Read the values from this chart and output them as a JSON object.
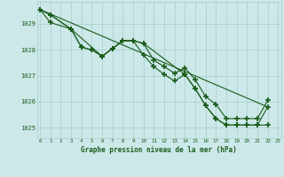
{
  "title": "Graphe pression niveau de la mer (hPa)",
  "background_color": "#cce8e8",
  "grid_color": "#aacccc",
  "line_color": "#1a5c1a",
  "text_color": "#1a5c1a",
  "xlim": [
    -0.3,
    23.3
  ],
  "ylim": [
    1024.6,
    1029.85
  ],
  "xticks": [
    0,
    1,
    2,
    3,
    4,
    5,
    6,
    7,
    8,
    9,
    10,
    11,
    12,
    13,
    14,
    15,
    16,
    17,
    18,
    19,
    20,
    21,
    22,
    23
  ],
  "yticks": [
    1025,
    1026,
    1027,
    1028,
    1029
  ],
  "line1_x": [
    0,
    1,
    3,
    4,
    5,
    6,
    7,
    8,
    9,
    10,
    11,
    12,
    13,
    14,
    15,
    16,
    17,
    18,
    19,
    20,
    21,
    22
  ],
  "line1_y": [
    1029.55,
    1029.35,
    1028.8,
    1028.1,
    1028.0,
    1027.75,
    1028.05,
    1028.35,
    1028.35,
    1028.25,
    1027.6,
    1027.35,
    1027.1,
    1027.3,
    1026.85,
    1026.2,
    1025.9,
    1025.35,
    1025.35,
    1025.35,
    1025.35,
    1026.05
  ],
  "line2_x": [
    0,
    1,
    3,
    4,
    5,
    6,
    7,
    8,
    9,
    10,
    11,
    12,
    13,
    14,
    15,
    16,
    17,
    18,
    19,
    20,
    21,
    22
  ],
  "line2_y": [
    1029.55,
    1029.05,
    1028.8,
    1028.1,
    1028.0,
    1027.75,
    1028.05,
    1028.35,
    1028.35,
    1027.8,
    1027.35,
    1027.05,
    1026.8,
    1027.05,
    1026.5,
    1025.85,
    1025.35,
    1025.1,
    1025.1,
    1025.1,
    1025.1,
    1025.1
  ],
  "line3_x": [
    0,
    22
  ],
  "line3_y": [
    1029.55,
    1025.8
  ],
  "line4_x": [
    0,
    1,
    3,
    6,
    7,
    8,
    9,
    10,
    14,
    15,
    16,
    17,
    18,
    19,
    20,
    21,
    22
  ],
  "line4_y": [
    1029.55,
    1029.35,
    1028.8,
    1027.75,
    1028.05,
    1028.35,
    1028.35,
    1028.25,
    1027.05,
    1026.5,
    1025.85,
    1025.35,
    1025.1,
    1025.1,
    1025.1,
    1025.1,
    1025.8
  ]
}
